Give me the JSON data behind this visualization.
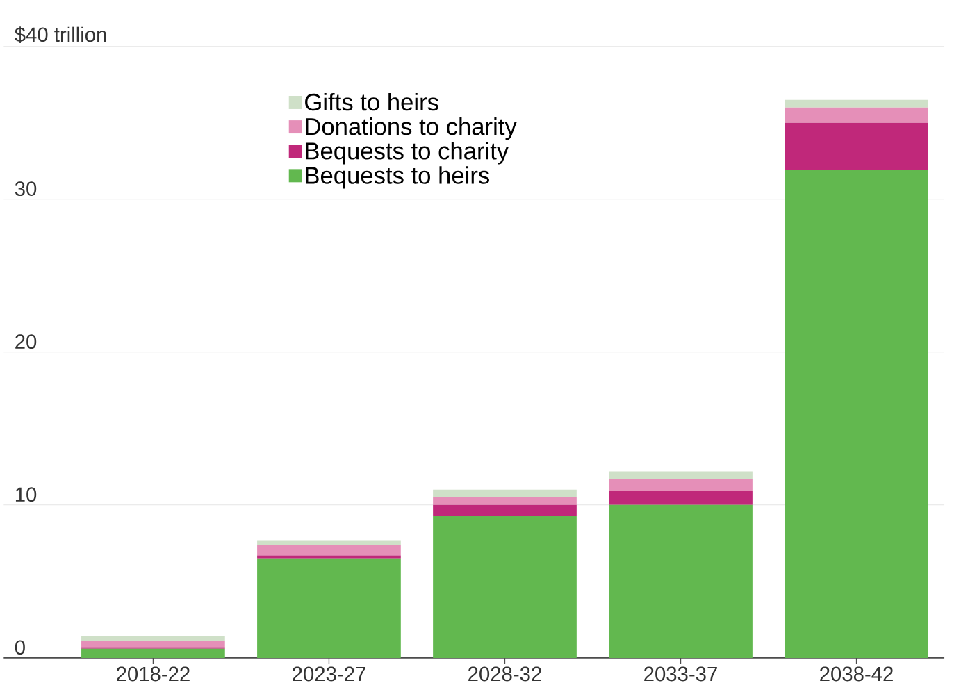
{
  "chart_data": {
    "type": "bar",
    "stacked": true,
    "categories": [
      "2018-22",
      "2023-27",
      "2028-32",
      "2033-37",
      "2038-42"
    ],
    "series": [
      {
        "name": "Bequests to heirs",
        "color": "#62b84f",
        "values": [
          0.6,
          6.5,
          9.3,
          10.0,
          31.9
        ]
      },
      {
        "name": "Bequests to charity",
        "color": "#c0287a",
        "values": [
          0.1,
          0.2,
          0.7,
          0.9,
          3.1
        ]
      },
      {
        "name": "Donations to charity",
        "color": "#e58fb8",
        "values": [
          0.4,
          0.7,
          0.5,
          0.8,
          1.0
        ]
      },
      {
        "name": "Gifts to heirs",
        "color": "#cfe0c8",
        "values": [
          0.3,
          0.3,
          0.5,
          0.5,
          0.5
        ]
      }
    ],
    "ylim": [
      0,
      40
    ],
    "yticks": [
      0,
      10,
      20,
      30,
      {
        "value": 40,
        "label": "$40 trillion"
      }
    ],
    "grid": "y",
    "legend": "top left"
  }
}
